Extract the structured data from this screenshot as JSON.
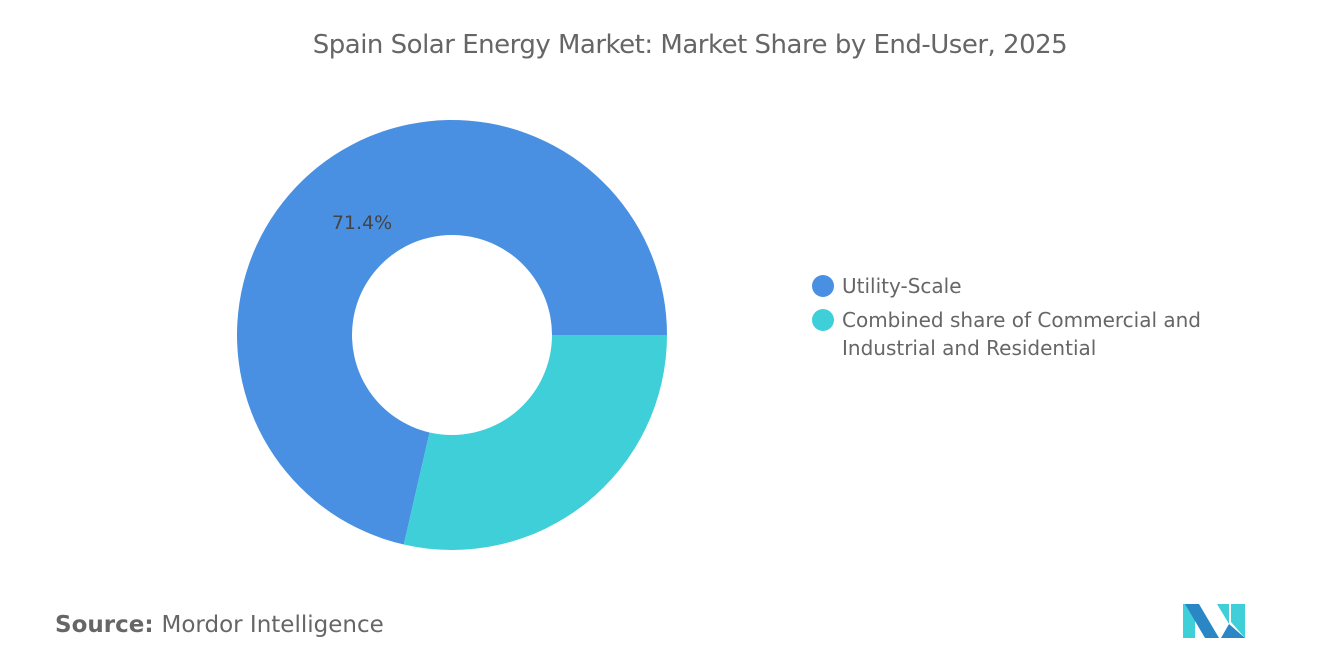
{
  "chart_data": {
    "type": "pie",
    "subtype": "donut",
    "title": "Spain Solar Energy Market: Market Share by End-User, 2025",
    "categories": [
      "Utility-Scale",
      "Combined share of Commercial and Industrial and Residential"
    ],
    "values": [
      71.4,
      28.6
    ],
    "data_labels": [
      "71.4%",
      ""
    ],
    "colors": [
      "#4a90e2",
      "#3ecfd9"
    ],
    "legend_placement": "right"
  },
  "source": {
    "label": "Source:",
    "value": "Mordor Intelligence"
  },
  "logo": {
    "colors": [
      "#2a86c4",
      "#3ecfd9"
    ]
  }
}
